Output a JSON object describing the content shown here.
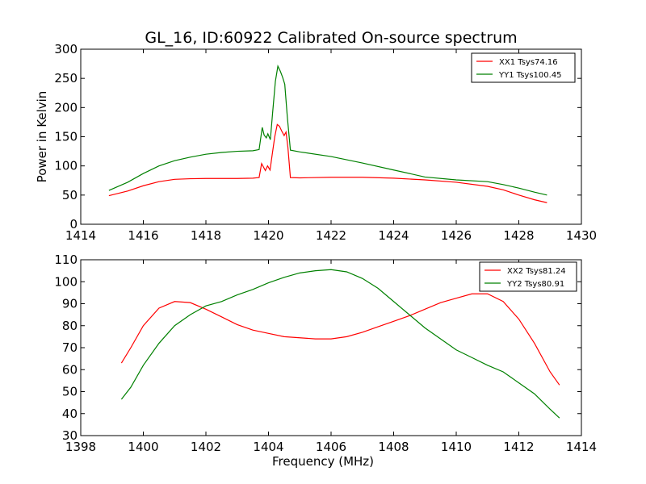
{
  "title": "GL_16, ID:60922 Calibrated On-source spectrum",
  "chart_data": [
    {
      "type": "line",
      "title": "GL_16, ID:60922 Calibrated On-source spectrum",
      "xlabel": "",
      "ylabel": "Power in Kelvin",
      "xlim": [
        1414,
        1430
      ],
      "ylim": [
        0,
        300
      ],
      "xticks": [
        "1414",
        "1416",
        "1418",
        "1420",
        "1422",
        "1424",
        "1426",
        "1428",
        "1430"
      ],
      "yticks": [
        "0",
        "50",
        "100",
        "150",
        "200",
        "250",
        "300"
      ],
      "grid": false,
      "legend_position": "top-right",
      "series": [
        {
          "name": "XX1 Tsys74.16",
          "color": "#ff0000",
          "points": [
            [
              1414.9,
              49
            ],
            [
              1415.5,
              57
            ],
            [
              1416.0,
              66
            ],
            [
              1416.5,
              73
            ],
            [
              1417.0,
              77
            ],
            [
              1417.5,
              78
            ],
            [
              1418.0,
              78.5
            ],
            [
              1418.5,
              78.5
            ],
            [
              1419.0,
              78.5
            ],
            [
              1419.5,
              79
            ],
            [
              1419.7,
              80
            ],
            [
              1419.78,
              104
            ],
            [
              1419.85,
              97
            ],
            [
              1419.9,
              92
            ],
            [
              1419.97,
              100
            ],
            [
              1420.05,
              93
            ],
            [
              1420.12,
              120
            ],
            [
              1420.2,
              150
            ],
            [
              1420.28,
              171
            ],
            [
              1420.35,
              168
            ],
            [
              1420.42,
              160
            ],
            [
              1420.5,
              152
            ],
            [
              1420.56,
              158
            ],
            [
              1420.62,
              132
            ],
            [
              1420.7,
              80
            ],
            [
              1421.0,
              79.5
            ],
            [
              1422.0,
              80.5
            ],
            [
              1423.0,
              80.5
            ],
            [
              1424.0,
              79
            ],
            [
              1425.0,
              76
            ],
            [
              1426.0,
              72
            ],
            [
              1427.0,
              65
            ],
            [
              1427.5,
              59
            ],
            [
              1428.0,
              50
            ],
            [
              1428.5,
              42
            ],
            [
              1428.9,
              37
            ]
          ]
        },
        {
          "name": "YY1 Tsys100.45",
          "color": "#008000",
          "points": [
            [
              1414.9,
              58
            ],
            [
              1415.5,
              72
            ],
            [
              1416.0,
              87
            ],
            [
              1416.5,
              100
            ],
            [
              1417.0,
              109
            ],
            [
              1417.5,
              115
            ],
            [
              1418.0,
              120
            ],
            [
              1418.5,
              123
            ],
            [
              1419.0,
              125
            ],
            [
              1419.5,
              126
            ],
            [
              1419.7,
              128
            ],
            [
              1419.8,
              166
            ],
            [
              1419.86,
              153
            ],
            [
              1419.93,
              148
            ],
            [
              1419.98,
              155
            ],
            [
              1420.06,
              145
            ],
            [
              1420.13,
              190
            ],
            [
              1420.22,
              245
            ],
            [
              1420.3,
              271
            ],
            [
              1420.38,
              262
            ],
            [
              1420.45,
              252
            ],
            [
              1420.52,
              240
            ],
            [
              1420.6,
              185
            ],
            [
              1420.7,
              127
            ],
            [
              1421.0,
              124
            ],
            [
              1422.0,
              116
            ],
            [
              1423.0,
              105
            ],
            [
              1424.0,
              93
            ],
            [
              1425.0,
              81
            ],
            [
              1426.0,
              76
            ],
            [
              1427.0,
              73
            ],
            [
              1427.5,
              68
            ],
            [
              1428.0,
              62
            ],
            [
              1428.5,
              55
            ],
            [
              1428.9,
              50
            ]
          ]
        }
      ]
    },
    {
      "type": "line",
      "title": "",
      "xlabel": "Frequency (MHz)",
      "ylabel": "",
      "xlim": [
        1398,
        1414
      ],
      "ylim": [
        30,
        110
      ],
      "xticks": [
        "1398",
        "1400",
        "1402",
        "1404",
        "1406",
        "1408",
        "1410",
        "1412",
        "1414"
      ],
      "yticks": [
        "30",
        "40",
        "50",
        "60",
        "70",
        "80",
        "90",
        "100",
        "110"
      ],
      "grid": false,
      "legend_position": "top-right",
      "series": [
        {
          "name": "XX2 Tsys81.24",
          "color": "#ff0000",
          "points": [
            [
              1399.3,
              63
            ],
            [
              1399.6,
              70
            ],
            [
              1400.0,
              80
            ],
            [
              1400.5,
              88
            ],
            [
              1401.0,
              91
            ],
            [
              1401.5,
              90.5
            ],
            [
              1402.0,
              87.5
            ],
            [
              1402.5,
              84
            ],
            [
              1403.0,
              80.5
            ],
            [
              1403.5,
              78
            ],
            [
              1404.0,
              76.5
            ],
            [
              1404.5,
              75
            ],
            [
              1405.0,
              74.5
            ],
            [
              1405.5,
              74
            ],
            [
              1406.0,
              74
            ],
            [
              1406.5,
              75
            ],
            [
              1407.0,
              77
            ],
            [
              1407.5,
              79.5
            ],
            [
              1408.0,
              82
            ],
            [
              1408.5,
              84.5
            ],
            [
              1409.0,
              87.5
            ],
            [
              1409.5,
              90.5
            ],
            [
              1410.0,
              92.5
            ],
            [
              1410.5,
              94.5
            ],
            [
              1411.0,
              94.5
            ],
            [
              1411.5,
              91
            ],
            [
              1412.0,
              83
            ],
            [
              1412.5,
              72
            ],
            [
              1413.0,
              59
            ],
            [
              1413.3,
              53
            ]
          ]
        },
        {
          "name": "YY2 Tsys80.91",
          "color": "#008000",
          "points": [
            [
              1399.3,
              46.5
            ],
            [
              1399.6,
              52
            ],
            [
              1400.0,
              62
            ],
            [
              1400.5,
              72
            ],
            [
              1401.0,
              80
            ],
            [
              1401.5,
              85
            ],
            [
              1402.0,
              89
            ],
            [
              1402.5,
              91
            ],
            [
              1403.0,
              94
            ],
            [
              1403.5,
              96.5
            ],
            [
              1404.0,
              99.5
            ],
            [
              1404.5,
              102
            ],
            [
              1405.0,
              104
            ],
            [
              1405.5,
              105
            ],
            [
              1406.0,
              105.5
            ],
            [
              1406.5,
              104.5
            ],
            [
              1407.0,
              101.5
            ],
            [
              1407.5,
              97
            ],
            [
              1408.0,
              91
            ],
            [
              1408.5,
              85
            ],
            [
              1409.0,
              79
            ],
            [
              1409.5,
              74
            ],
            [
              1410.0,
              69
            ],
            [
              1410.5,
              65.5
            ],
            [
              1411.0,
              62
            ],
            [
              1411.5,
              59
            ],
            [
              1412.0,
              54
            ],
            [
              1412.5,
              49
            ],
            [
              1413.0,
              42
            ],
            [
              1413.3,
              38
            ]
          ]
        }
      ]
    }
  ]
}
